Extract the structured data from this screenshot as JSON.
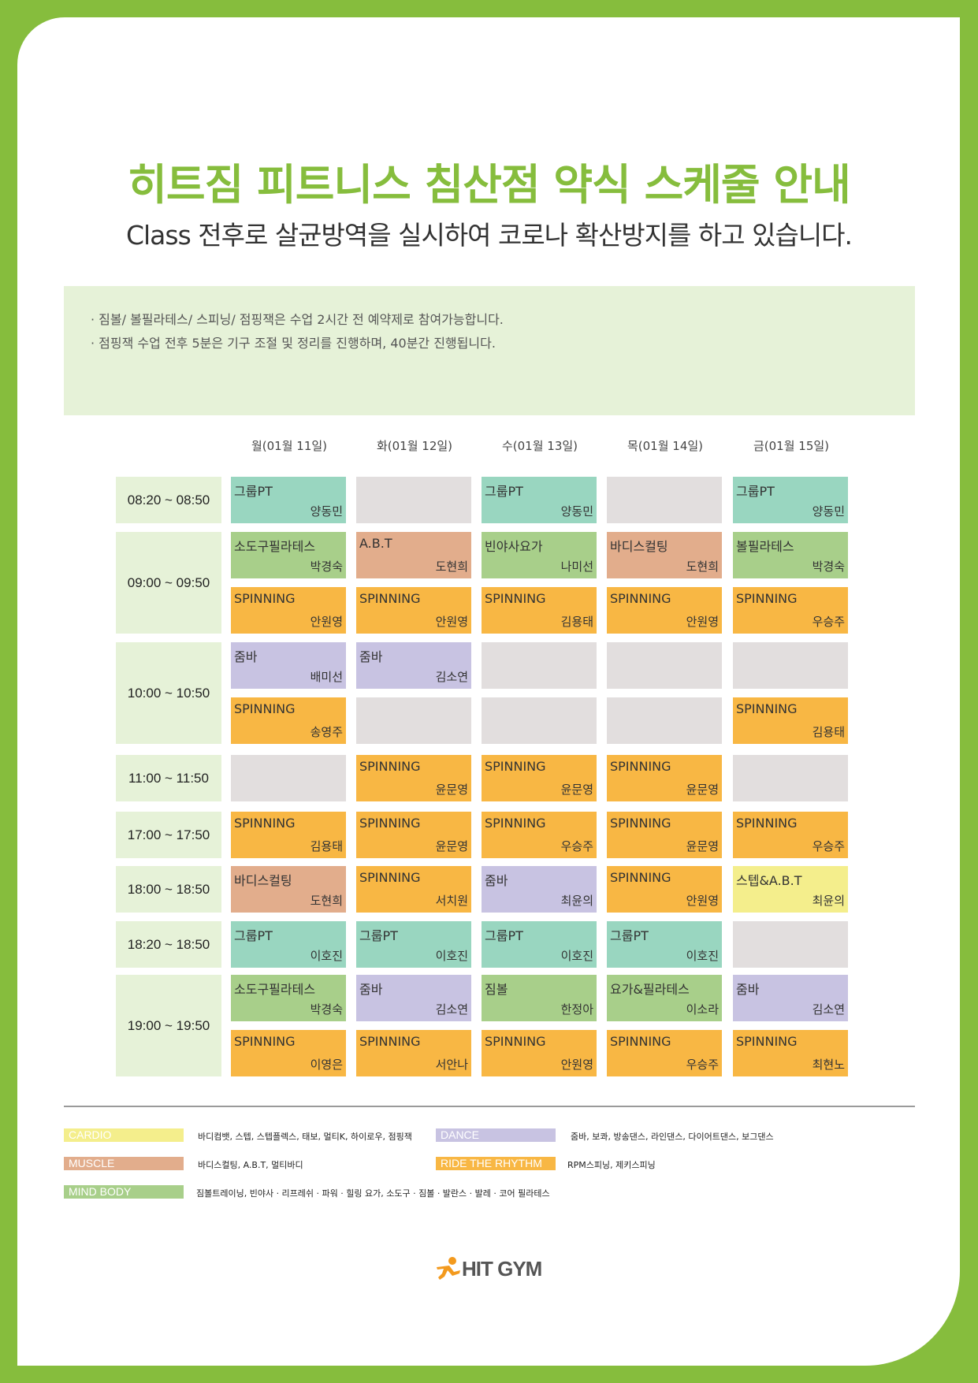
{
  "title": "히트짐 피트니스 침산점 약식 스케줄 안내",
  "subtitle": "Class 전후로 살균방역을 실시하여 코로나 확산방지를 하고 있습니다.",
  "notices": [
    "· 짐볼/ 볼필라테스/ 스피닝/ 점핑잭은 수업 2시간 전 예약제로 참여가능합니다.",
    "· 점핑잭 수업 전후 5분은 기구 조절 및 정리를 진행하며, 40분간 진행됩니다."
  ],
  "days": [
    "월(01월 11일)",
    "화(01월 12일)",
    "수(01월 13일)",
    "목(01월 14일)",
    "금(01월 15일)"
  ],
  "colors": {
    "cardio": "#f4ee8c",
    "muscle": "#e2ad8c",
    "mind_body": "#a8cf8a",
    "dance": "#c8c3e2",
    "ride": "#f8b744",
    "group_pt": "#99d6c0",
    "empty": "#e2dede",
    "brand_green": "#86bd3d"
  },
  "times": [
    {
      "label": "08:20 ~ 08:50"
    },
    {
      "label": "09:00 ~ 09:50"
    },
    {
      "label": "10:00 ~ 10:50"
    },
    {
      "label": "11:00 ~ 11:50"
    },
    {
      "label": "17:00 ~ 17:50"
    },
    {
      "label": "18:00 ~ 18:50"
    },
    {
      "label": "18:20 ~ 18:50"
    },
    {
      "label": "19:00 ~ 19:50"
    }
  ],
  "rows": [
    {
      "slots": [
        {
          "cls": "그룹PT",
          "tch": "양동민",
          "cat": "group_pt"
        },
        {
          "cls": "",
          "tch": "",
          "cat": "empty"
        },
        {
          "cls": "그룹PT",
          "tch": "양동민",
          "cat": "group_pt"
        },
        {
          "cls": "",
          "tch": "",
          "cat": "empty"
        },
        {
          "cls": "그룹PT",
          "tch": "양동민",
          "cat": "group_pt"
        }
      ]
    },
    {
      "slots": [
        {
          "cls": "소도구필라테스",
          "tch": "박경숙",
          "cat": "mind_body"
        },
        {
          "cls": "A.B.T",
          "tch": "도현희",
          "cat": "muscle"
        },
        {
          "cls": "빈야사요가",
          "tch": "나미선",
          "cat": "mind_body"
        },
        {
          "cls": "바디스컬팅",
          "tch": "도현희",
          "cat": "muscle"
        },
        {
          "cls": "볼필라테스",
          "tch": "박경숙",
          "cat": "mind_body"
        }
      ]
    },
    {
      "slots": [
        {
          "cls": "SPINNING",
          "tch": "안원영",
          "cat": "ride"
        },
        {
          "cls": "SPINNING",
          "tch": "안원영",
          "cat": "ride"
        },
        {
          "cls": "SPINNING",
          "tch": "김용태",
          "cat": "ride"
        },
        {
          "cls": "SPINNING",
          "tch": "안원영",
          "cat": "ride"
        },
        {
          "cls": "SPINNING",
          "tch": "우승주",
          "cat": "ride"
        }
      ]
    },
    {
      "slots": [
        {
          "cls": "줌바",
          "tch": "배미선",
          "cat": "dance"
        },
        {
          "cls": "줌바",
          "tch": "김소연",
          "cat": "dance"
        },
        {
          "cls": "",
          "tch": "",
          "cat": "empty"
        },
        {
          "cls": "",
          "tch": "",
          "cat": "empty"
        },
        {
          "cls": "",
          "tch": "",
          "cat": "empty"
        }
      ]
    },
    {
      "slots": [
        {
          "cls": "SPINNING",
          "tch": "송영주",
          "cat": "ride"
        },
        {
          "cls": "",
          "tch": "",
          "cat": "empty"
        },
        {
          "cls": "",
          "tch": "",
          "cat": "empty"
        },
        {
          "cls": "",
          "tch": "",
          "cat": "empty"
        },
        {
          "cls": "SPINNING",
          "tch": "김용태",
          "cat": "ride"
        }
      ]
    },
    {
      "slots": [
        {
          "cls": "",
          "tch": "",
          "cat": "empty"
        },
        {
          "cls": "SPINNING",
          "tch": "윤문영",
          "cat": "ride"
        },
        {
          "cls": "SPINNING",
          "tch": "윤문영",
          "cat": "ride"
        },
        {
          "cls": "SPINNING",
          "tch": "윤문영",
          "cat": "ride"
        },
        {
          "cls": "",
          "tch": "",
          "cat": "empty"
        }
      ]
    },
    {
      "slots": [
        {
          "cls": "SPINNING",
          "tch": "김용태",
          "cat": "ride"
        },
        {
          "cls": "SPINNING",
          "tch": "윤문영",
          "cat": "ride"
        },
        {
          "cls": "SPINNING",
          "tch": "우승주",
          "cat": "ride"
        },
        {
          "cls": "SPINNING",
          "tch": "윤문영",
          "cat": "ride"
        },
        {
          "cls": "SPINNING",
          "tch": "우승주",
          "cat": "ride"
        }
      ]
    },
    {
      "slots": [
        {
          "cls": "바디스컬팅",
          "tch": "도현희",
          "cat": "muscle"
        },
        {
          "cls": "SPINNING",
          "tch": "서치원",
          "cat": "ride"
        },
        {
          "cls": "줌바",
          "tch": "최윤의",
          "cat": "dance"
        },
        {
          "cls": "SPINNING",
          "tch": "안원영",
          "cat": "ride"
        },
        {
          "cls": "스텝&A.B.T",
          "tch": "최윤의",
          "cat": "cardio"
        }
      ]
    },
    {
      "slots": [
        {
          "cls": "그룹PT",
          "tch": "이호진",
          "cat": "group_pt"
        },
        {
          "cls": "그룹PT",
          "tch": "이호진",
          "cat": "group_pt"
        },
        {
          "cls": "그룹PT",
          "tch": "이호진",
          "cat": "group_pt"
        },
        {
          "cls": "그룹PT",
          "tch": "이호진",
          "cat": "group_pt"
        },
        {
          "cls": "",
          "tch": "",
          "cat": "empty"
        }
      ]
    },
    {
      "slots": [
        {
          "cls": "소도구필라테스",
          "tch": "박경숙",
          "cat": "mind_body"
        },
        {
          "cls": "줌바",
          "tch": "김소연",
          "cat": "dance"
        },
        {
          "cls": "짐볼",
          "tch": "한정아",
          "cat": "mind_body"
        },
        {
          "cls": "요가&필라테스",
          "tch": "이소라",
          "cat": "mind_body"
        },
        {
          "cls": "줌바",
          "tch": "김소연",
          "cat": "dance"
        }
      ]
    },
    {
      "slots": [
        {
          "cls": "SPINNING",
          "tch": "이영은",
          "cat": "ride"
        },
        {
          "cls": "SPINNING",
          "tch": "서안나",
          "cat": "ride"
        },
        {
          "cls": "SPINNING",
          "tch": "안원영",
          "cat": "ride"
        },
        {
          "cls": "SPINNING",
          "tch": "우승주",
          "cat": "ride"
        },
        {
          "cls": "SPINNING",
          "tch": "최현노",
          "cat": "ride"
        }
      ]
    }
  ],
  "legend": [
    {
      "tag": "CARDIO",
      "desc": "바디컴뱃, 스텝, 스텝플렉스, 태보, 멀티K, 하이로우, 점핑잭",
      "cat": "cardio"
    },
    {
      "tag": "DANCE",
      "desc": "줌바, 보콰, 방송댄스, 라인댄스, 다이어트댄스, 보그댄스",
      "cat": "dance"
    },
    {
      "tag": "MUSCLE",
      "desc": "바디스컬팅, A.B.T, 멀티바디",
      "cat": "muscle"
    },
    {
      "tag": "RIDE THE RHYTHM",
      "desc": "RPM스피닝, 제키스피닝",
      "cat": "ride"
    },
    {
      "tag": "MIND BODY",
      "desc": "짐볼트레이닝, 빈야사 · 리프레쉬 · 파워 · 힐링 요가, 소도구 · 짐볼 · 발란스 · 발레 · 코어 필라테스",
      "cat": "mind_body"
    }
  ],
  "logo": "HIT GYM"
}
